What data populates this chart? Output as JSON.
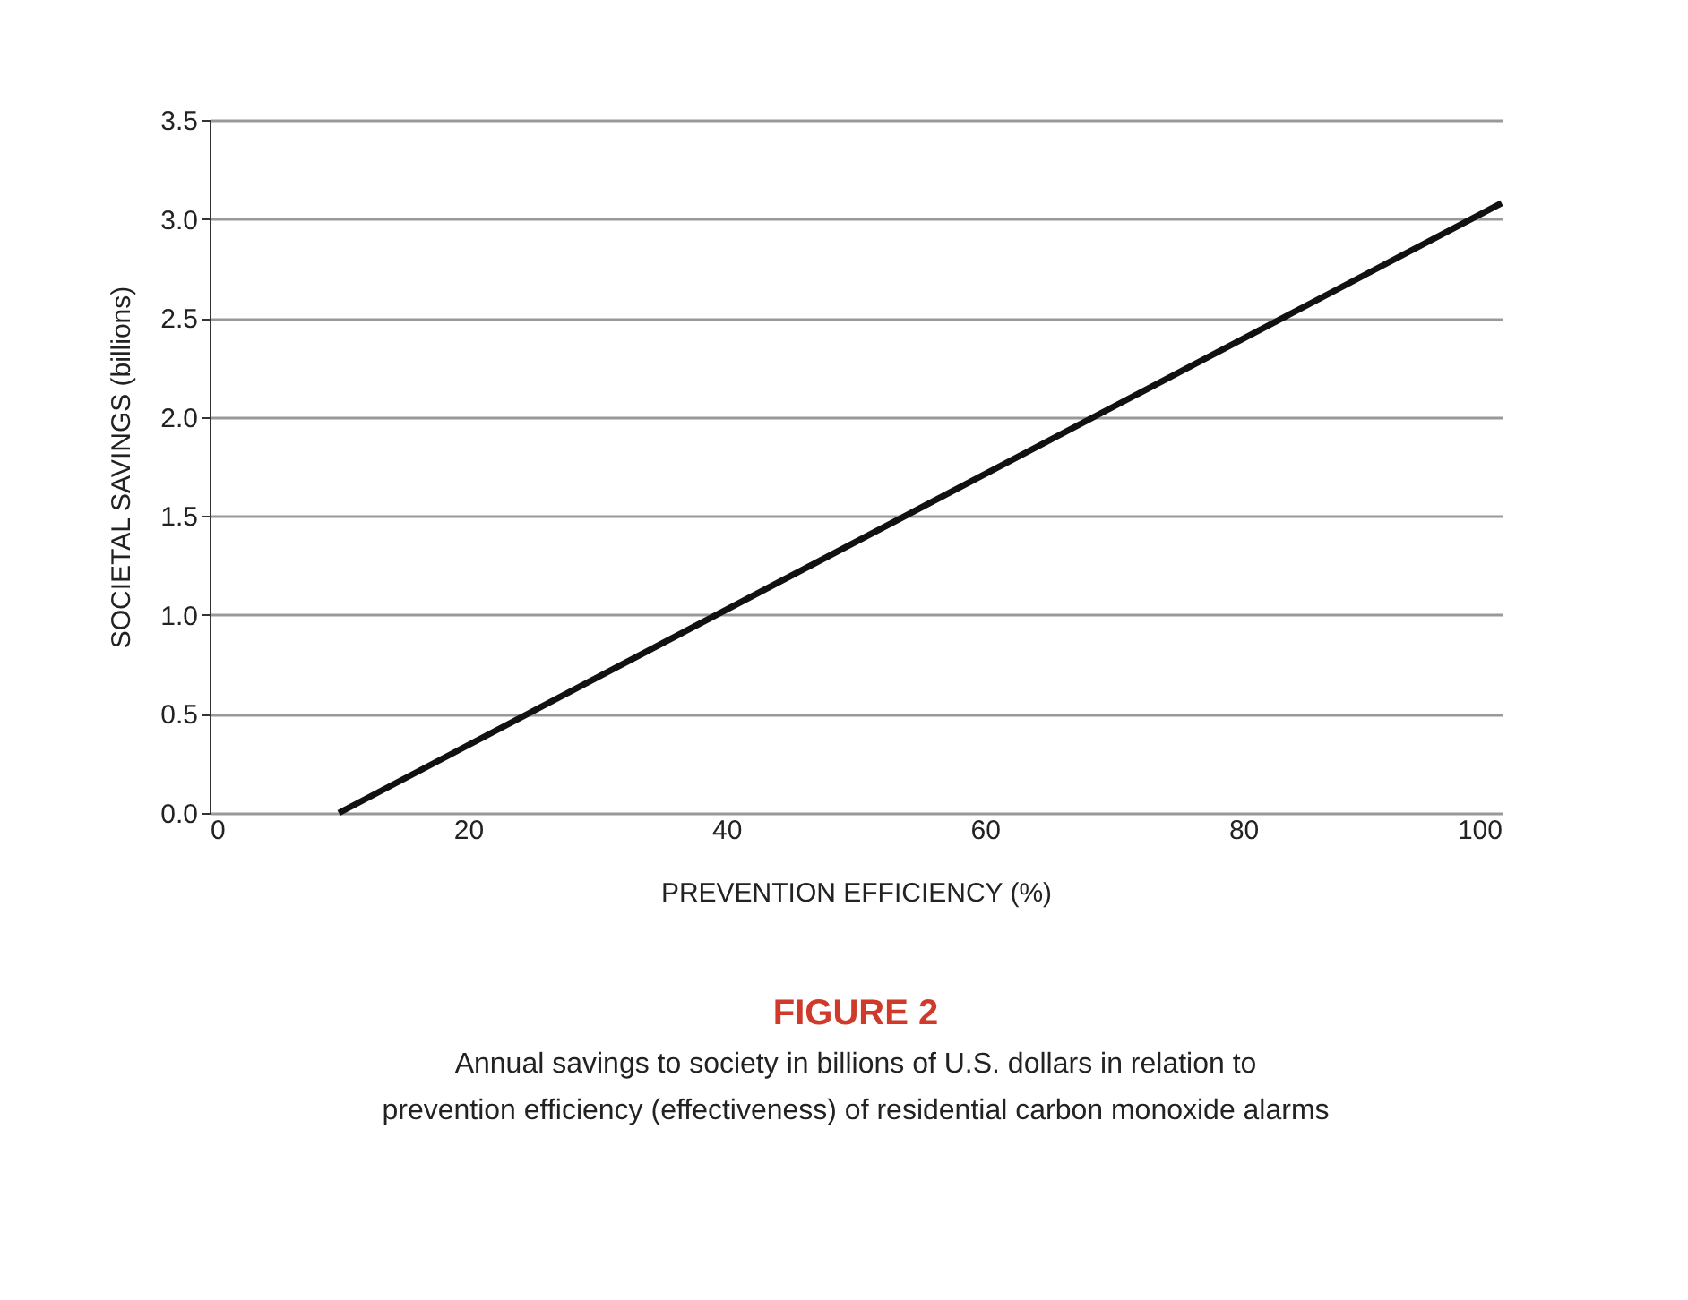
{
  "chart_data": {
    "type": "line",
    "title": "FIGURE 2",
    "subtitle": "Annual savings to society in billions of U.S. dollars in relation to prevention efficiency (effectiveness) of residential carbon monoxide alarms",
    "xlabel": "PREVENTION EFFICIENCY  (%)",
    "ylabel": "SOCIETAL SAVINGS  (billions)",
    "series": [
      {
        "x": [
          10,
          100
        ],
        "values": [
          0,
          3.08
        ],
        "color": "#111111"
      }
    ],
    "xlim": [
      0,
      100
    ],
    "xticks": [
      0,
      20,
      40,
      60,
      80,
      100
    ],
    "ylim": [
      0,
      3.5
    ],
    "yticks": [
      {
        "value": 0,
        "label": "0.0"
      },
      0.5,
      {
        "value": 1,
        "label": "1.0"
      },
      1.5,
      {
        "value": 2,
        "label": "2.0"
      },
      2.5,
      {
        "value": 3,
        "label": "3.0"
      },
      3.5
    ],
    "grid": "y",
    "marker": "none",
    "line_style": "solid"
  }
}
